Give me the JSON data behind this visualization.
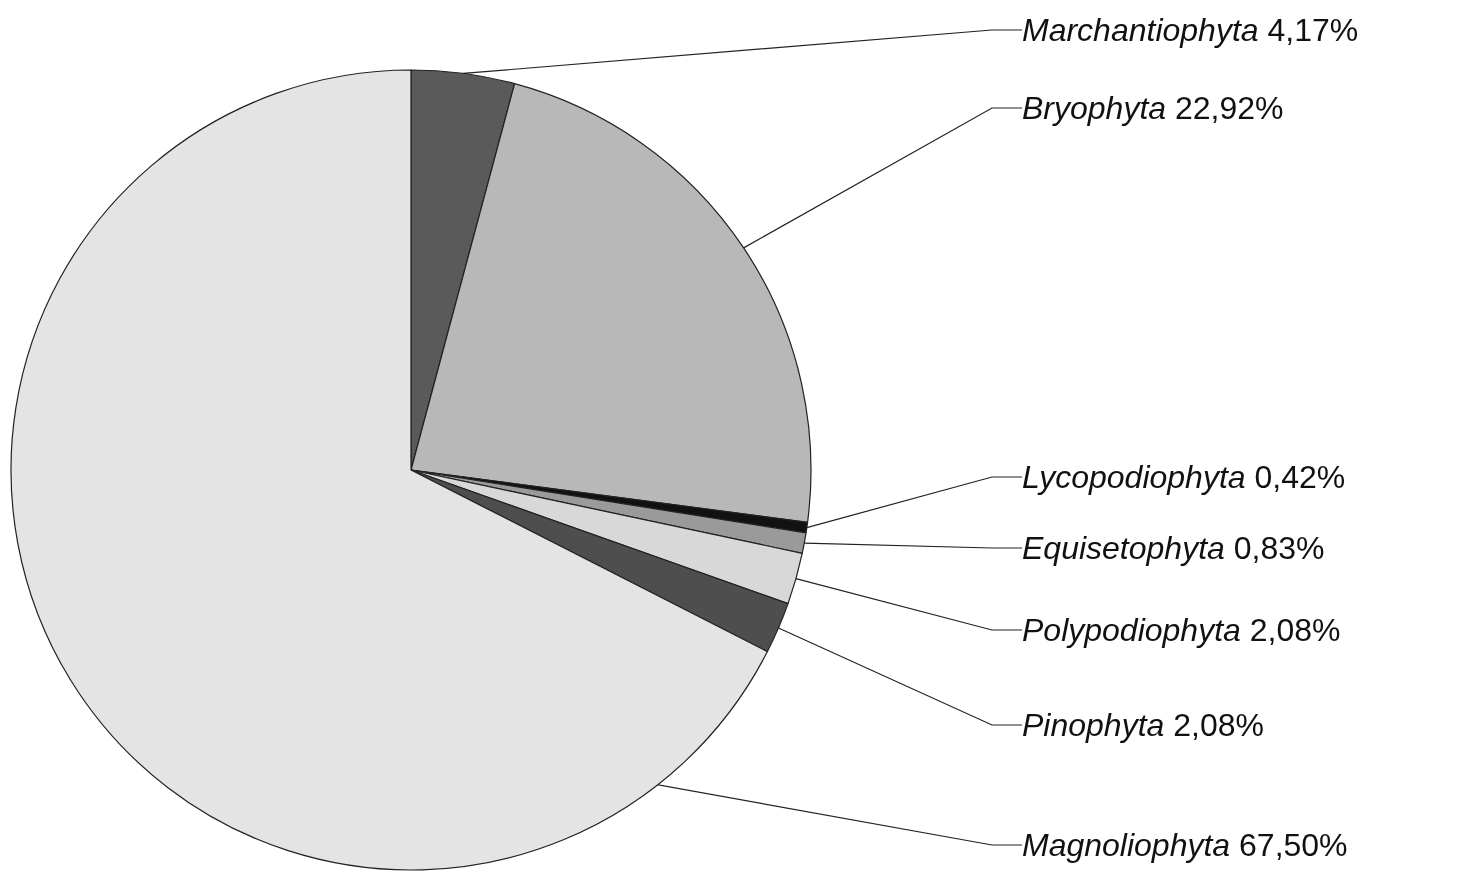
{
  "chart_data": {
    "type": "pie",
    "categories": [
      "Marchantiophyta",
      "Bryophyta",
      "Lycopodiophyta",
      "Equisetophyta",
      "Polypodiophyta",
      "Pinophyta",
      "Magnoliophyta"
    ],
    "values": [
      4.17,
      22.92,
      0.42,
      0.83,
      2.08,
      2.08,
      67.5
    ],
    "value_labels": [
      "4,17%",
      "22,92%",
      "0,42%",
      "0,83%",
      "2,08%",
      "2,08%",
      "67,50%"
    ],
    "colors": [
      "#5a5a5a",
      "#b8b8b8",
      "#111111",
      "#9a9a9a",
      "#d8d8d8",
      "#4e4e4e",
      "#e4e4e4"
    ],
    "legend": false
  }
}
